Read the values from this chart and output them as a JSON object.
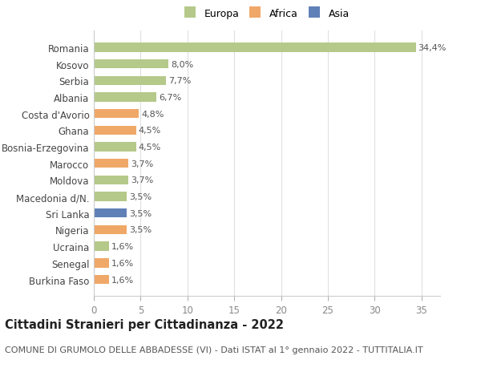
{
  "categories": [
    "Burkina Faso",
    "Senegal",
    "Ucraina",
    "Nigeria",
    "Sri Lanka",
    "Macedonia d/N.",
    "Moldova",
    "Marocco",
    "Bosnia-Erzegovina",
    "Ghana",
    "Costa d'Avorio",
    "Albania",
    "Serbia",
    "Kosovo",
    "Romania"
  ],
  "values": [
    1.6,
    1.6,
    1.6,
    3.5,
    3.5,
    3.5,
    3.7,
    3.7,
    4.5,
    4.5,
    4.8,
    6.7,
    7.7,
    8.0,
    34.4
  ],
  "labels": [
    "1,6%",
    "1,6%",
    "1,6%",
    "3,5%",
    "3,5%",
    "3,5%",
    "3,7%",
    "3,7%",
    "4,5%",
    "4,5%",
    "4,8%",
    "6,7%",
    "7,7%",
    "8,0%",
    "34,4%"
  ],
  "colors": [
    "#f0a868",
    "#f0a868",
    "#b5c98a",
    "#f0a868",
    "#6080b8",
    "#b5c98a",
    "#b5c98a",
    "#f0a868",
    "#b5c98a",
    "#f0a868",
    "#f0a868",
    "#b5c98a",
    "#b5c98a",
    "#b5c98a",
    "#b5c98a"
  ],
  "legend": [
    {
      "label": "Europa",
      "color": "#b5c98a"
    },
    {
      "label": "Africa",
      "color": "#f0a868"
    },
    {
      "label": "Asia",
      "color": "#6080b8"
    }
  ],
  "title": "Cittadini Stranieri per Cittadinanza - 2022",
  "subtitle": "COMUNE DI GRUMOLO DELLE ABBADESSE (VI) - Dati ISTAT al 1° gennaio 2022 - TUTTITALIA.IT",
  "xlim": [
    0,
    37
  ],
  "xticks": [
    0,
    5,
    10,
    15,
    20,
    25,
    30,
    35
  ],
  "background_color": "#ffffff",
  "grid_color": "#e0e0e0",
  "bar_height": 0.55,
  "title_fontsize": 10.5,
  "subtitle_fontsize": 8.0,
  "label_fontsize": 8.0,
  "tick_fontsize": 8.5,
  "legend_fontsize": 9.0
}
